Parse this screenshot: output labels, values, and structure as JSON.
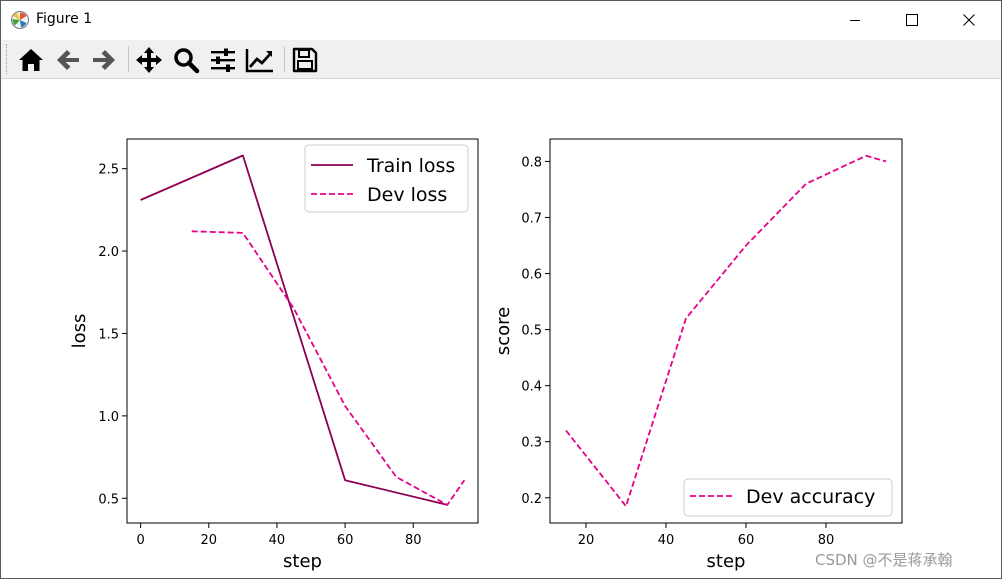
{
  "window": {
    "title": "Figure 1",
    "icons": {
      "app": "matplotlib-icon",
      "minimize": "minimize-icon",
      "maximize": "maximize-icon",
      "close": "close-icon"
    }
  },
  "toolbar": {
    "buttons": [
      {
        "name": "home",
        "icon": "home-icon"
      },
      {
        "name": "back",
        "icon": "arrow-left-icon"
      },
      {
        "name": "forward",
        "icon": "arrow-right-icon"
      },
      {
        "name": "pan",
        "icon": "move-icon"
      },
      {
        "name": "zoom",
        "icon": "magnifier-icon"
      },
      {
        "name": "configure-subplots",
        "icon": "sliders-icon"
      },
      {
        "name": "edit-axis",
        "icon": "chart-line-icon"
      },
      {
        "name": "save",
        "icon": "floppy-icon"
      }
    ]
  },
  "watermark": "CSDN @不是蒋承翰",
  "colors": {
    "train": "#8e0152",
    "dev": "#e7008a"
  },
  "chart_data": [
    {
      "type": "line",
      "title": "",
      "xlabel": "step",
      "ylabel": "loss",
      "xlim": [
        -4,
        99
      ],
      "ylim": [
        0.35,
        2.68
      ],
      "xticks": [
        0,
        20,
        40,
        60,
        80
      ],
      "yticks": [
        0.5,
        1.0,
        1.5,
        2.0,
        2.5
      ],
      "xtick_labels": [
        "0",
        "20",
        "40",
        "60",
        "80"
      ],
      "ytick_labels": [
        "0.5",
        "1.0",
        "1.5",
        "2.0",
        "2.5"
      ],
      "legend_position": "upper right",
      "series": [
        {
          "name": "Train loss",
          "style": "solid",
          "color": "#8e0152",
          "x": [
            0,
            30,
            60,
            90
          ],
          "y": [
            2.31,
            2.58,
            0.61,
            0.46
          ]
        },
        {
          "name": "Dev loss",
          "style": "dashed",
          "color": "#e7008a",
          "x": [
            15,
            30,
            45,
            60,
            75,
            90,
            95
          ],
          "y": [
            2.12,
            2.11,
            1.65,
            1.06,
            0.63,
            0.46,
            0.61
          ]
        }
      ]
    },
    {
      "type": "line",
      "title": "",
      "xlabel": "step",
      "ylabel": "score",
      "xlim": [
        11,
        99
      ],
      "ylim": [
        0.155,
        0.84
      ],
      "xticks": [
        20,
        40,
        60,
        80
      ],
      "yticks": [
        0.2,
        0.3,
        0.4,
        0.5,
        0.6,
        0.7,
        0.8
      ],
      "xtick_labels": [
        "20",
        "40",
        "60",
        "80"
      ],
      "ytick_labels": [
        "0.2",
        "0.3",
        "0.4",
        "0.5",
        "0.6",
        "0.7",
        "0.8"
      ],
      "legend_position": "lower right",
      "series": [
        {
          "name": "Dev accuracy",
          "style": "dashed",
          "color": "#e7008a",
          "x": [
            15,
            30,
            45,
            60,
            75,
            90,
            95
          ],
          "y": [
            0.32,
            0.185,
            0.52,
            0.65,
            0.76,
            0.81,
            0.8
          ]
        }
      ]
    }
  ]
}
